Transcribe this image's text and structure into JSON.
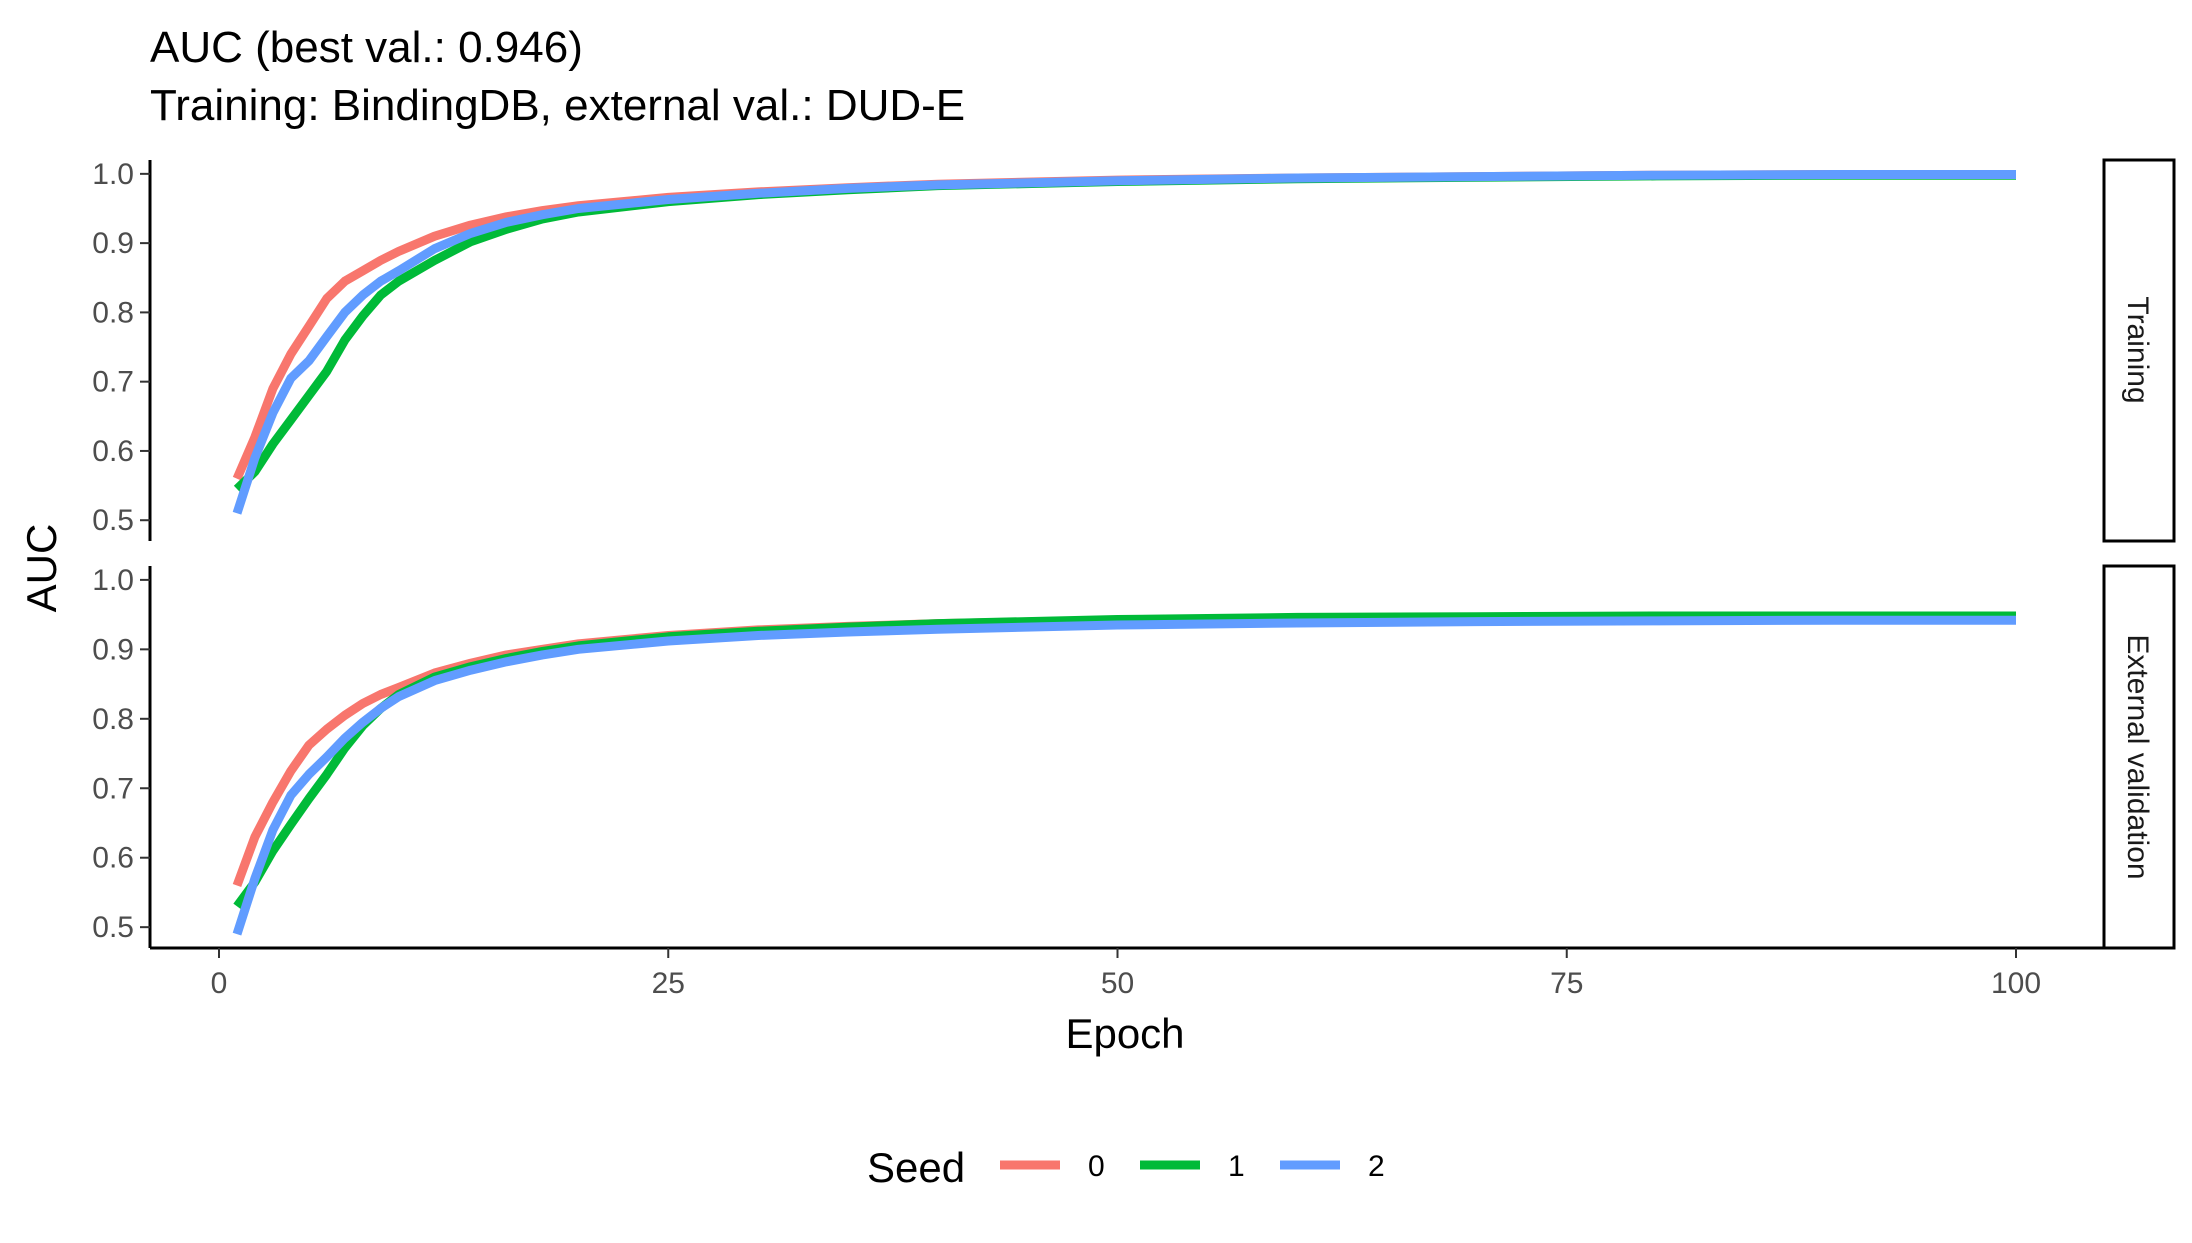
{
  "chart_data": {
    "type": "line",
    "title": "AUC (best val.: 0.946)",
    "subtitle": "Training: BindingDB, external val.: DUD-E",
    "xlabel": "Epoch",
    "ylabel": "AUC",
    "xlim": [
      1,
      100
    ],
    "ylim": [
      0.47,
      1.02
    ],
    "x_ticks": [
      0,
      25,
      50,
      75,
      100
    ],
    "y_ticks": [
      0.5,
      0.6,
      0.7,
      0.8,
      0.9,
      1.0
    ],
    "y_tick_labels": [
      "0.5",
      "0.6",
      "0.7",
      "0.8",
      "0.9",
      "1.0"
    ],
    "grid": false,
    "legend": {
      "title": "Seed",
      "position": "bottom"
    },
    "colors": {
      "0": "#F8766D",
      "1": "#00BA38",
      "2": "#619CFF"
    },
    "panels": [
      {
        "name": "Training",
        "series": [
          {
            "name": "0",
            "points": [
              [
                1,
                0.56
              ],
              [
                2,
                0.62
              ],
              [
                3,
                0.69
              ],
              [
                4,
                0.74
              ],
              [
                5,
                0.78
              ],
              [
                6,
                0.82
              ],
              [
                7,
                0.845
              ],
              [
                8,
                0.86
              ],
              [
                9,
                0.875
              ],
              [
                10,
                0.888
              ],
              [
                12,
                0.91
              ],
              [
                14,
                0.926
              ],
              [
                16,
                0.938
              ],
              [
                18,
                0.947
              ],
              [
                20,
                0.954
              ],
              [
                25,
                0.966
              ],
              [
                30,
                0.974
              ],
              [
                35,
                0.98
              ],
              [
                40,
                0.985
              ],
              [
                50,
                0.991
              ],
              [
                60,
                0.994
              ],
              [
                70,
                0.996
              ],
              [
                80,
                0.998
              ],
              [
                90,
                0.999
              ],
              [
                100,
                0.999
              ]
            ]
          },
          {
            "name": "1",
            "points": [
              [
                1,
                0.545
              ],
              [
                2,
                0.57
              ],
              [
                3,
                0.61
              ],
              [
                4,
                0.645
              ],
              [
                5,
                0.68
              ],
              [
                6,
                0.715
              ],
              [
                7,
                0.76
              ],
              [
                8,
                0.795
              ],
              [
                9,
                0.825
              ],
              [
                10,
                0.845
              ],
              [
                12,
                0.875
              ],
              [
                14,
                0.902
              ],
              [
                16,
                0.92
              ],
              [
                18,
                0.935
              ],
              [
                20,
                0.945
              ],
              [
                25,
                0.96
              ],
              [
                30,
                0.97
              ],
              [
                35,
                0.977
              ],
              [
                40,
                0.983
              ],
              [
                50,
                0.989
              ],
              [
                60,
                0.993
              ],
              [
                70,
                0.995
              ],
              [
                80,
                0.997
              ],
              [
                90,
                0.998
              ],
              [
                100,
                0.998
              ]
            ]
          },
          {
            "name": "2",
            "points": [
              [
                1,
                0.51
              ],
              [
                2,
                0.59
              ],
              [
                3,
                0.655
              ],
              [
                4,
                0.705
              ],
              [
                5,
                0.73
              ],
              [
                6,
                0.765
              ],
              [
                7,
                0.8
              ],
              [
                8,
                0.825
              ],
              [
                9,
                0.845
              ],
              [
                10,
                0.86
              ],
              [
                12,
                0.892
              ],
              [
                14,
                0.914
              ],
              [
                16,
                0.93
              ],
              [
                18,
                0.941
              ],
              [
                20,
                0.95
              ],
              [
                25,
                0.963
              ],
              [
                30,
                0.972
              ],
              [
                35,
                0.979
              ],
              [
                40,
                0.984
              ],
              [
                50,
                0.99
              ],
              [
                60,
                0.994
              ],
              [
                70,
                0.996
              ],
              [
                80,
                0.998
              ],
              [
                90,
                0.999
              ],
              [
                100,
                0.999
              ]
            ]
          }
        ]
      },
      {
        "name": "External validation",
        "series": [
          {
            "name": "0",
            "points": [
              [
                1,
                0.56
              ],
              [
                2,
                0.63
              ],
              [
                3,
                0.68
              ],
              [
                4,
                0.725
              ],
              [
                5,
                0.762
              ],
              [
                6,
                0.785
              ],
              [
                7,
                0.805
              ],
              [
                8,
                0.822
              ],
              [
                9,
                0.835
              ],
              [
                10,
                0.845
              ],
              [
                12,
                0.866
              ],
              [
                14,
                0.88
              ],
              [
                16,
                0.892
              ],
              [
                18,
                0.9
              ],
              [
                20,
                0.908
              ],
              [
                25,
                0.92
              ],
              [
                30,
                0.928
              ],
              [
                35,
                0.933
              ],
              [
                40,
                0.937
              ],
              [
                50,
                0.942
              ],
              [
                60,
                0.945
              ],
              [
                70,
                0.946
              ],
              [
                80,
                0.947
              ],
              [
                90,
                0.947
              ],
              [
                100,
                0.946
              ]
            ]
          },
          {
            "name": "1",
            "points": [
              [
                1,
                0.53
              ],
              [
                2,
                0.565
              ],
              [
                3,
                0.61
              ],
              [
                4,
                0.648
              ],
              [
                5,
                0.685
              ],
              [
                6,
                0.72
              ],
              [
                7,
                0.758
              ],
              [
                8,
                0.79
              ],
              [
                9,
                0.815
              ],
              [
                10,
                0.835
              ],
              [
                12,
                0.86
              ],
              [
                14,
                0.875
              ],
              [
                16,
                0.887
              ],
              [
                18,
                0.897
              ],
              [
                20,
                0.905
              ],
              [
                25,
                0.918
              ],
              [
                30,
                0.926
              ],
              [
                35,
                0.932
              ],
              [
                40,
                0.937
              ],
              [
                50,
                0.943
              ],
              [
                60,
                0.946
              ],
              [
                70,
                0.947
              ],
              [
                80,
                0.948
              ],
              [
                90,
                0.948
              ],
              [
                100,
                0.948
              ]
            ]
          },
          {
            "name": "2",
            "points": [
              [
                1,
                0.49
              ],
              [
                2,
                0.57
              ],
              [
                3,
                0.64
              ],
              [
                4,
                0.69
              ],
              [
                5,
                0.72
              ],
              [
                6,
                0.745
              ],
              [
                7,
                0.772
              ],
              [
                8,
                0.795
              ],
              [
                9,
                0.815
              ],
              [
                10,
                0.832
              ],
              [
                12,
                0.855
              ],
              [
                14,
                0.87
              ],
              [
                16,
                0.882
              ],
              [
                18,
                0.892
              ],
              [
                20,
                0.9
              ],
              [
                25,
                0.912
              ],
              [
                30,
                0.92
              ],
              [
                35,
                0.925
              ],
              [
                40,
                0.929
              ],
              [
                50,
                0.935
              ],
              [
                60,
                0.938
              ],
              [
                70,
                0.94
              ],
              [
                80,
                0.941
              ],
              [
                90,
                0.942
              ],
              [
                100,
                0.942
              ]
            ]
          }
        ]
      }
    ]
  }
}
